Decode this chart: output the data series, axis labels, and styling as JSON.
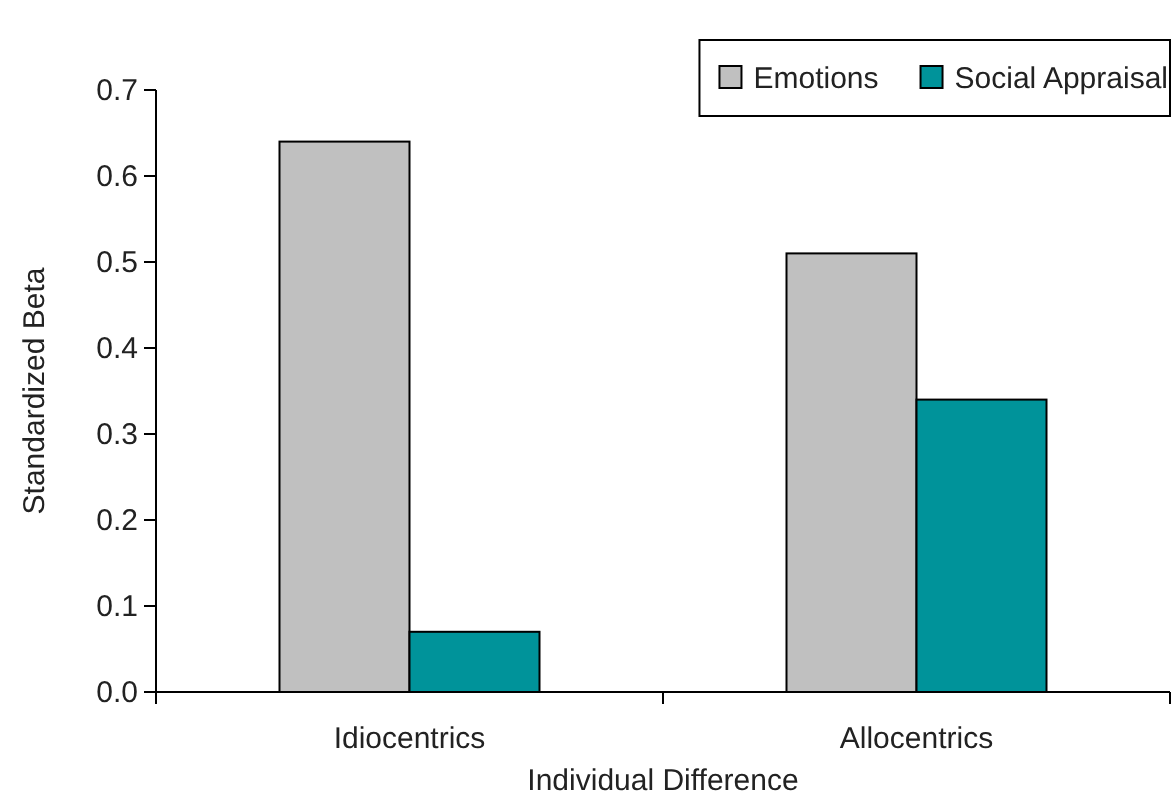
{
  "chart_data": {
    "type": "bar",
    "xlabel": "Individual Difference",
    "ylabel": "Standardized Beta",
    "categories": [
      "Idiocentrics",
      "Allocentrics"
    ],
    "series": [
      {
        "name": "Emotions",
        "color": "#c0c0c0",
        "values": [
          0.64,
          0.51
        ]
      },
      {
        "name": "Social Appraisal",
        "color": "#00939a",
        "values": [
          0.07,
          0.34
        ]
      }
    ],
    "ylim": [
      0,
      0.7
    ],
    "yticks": [
      {
        "value": 0,
        "label": "0.0"
      },
      0.1,
      0.2,
      0.3,
      0.4,
      0.5,
      0.6,
      0.7
    ],
    "grid": false,
    "legend": "top right"
  }
}
